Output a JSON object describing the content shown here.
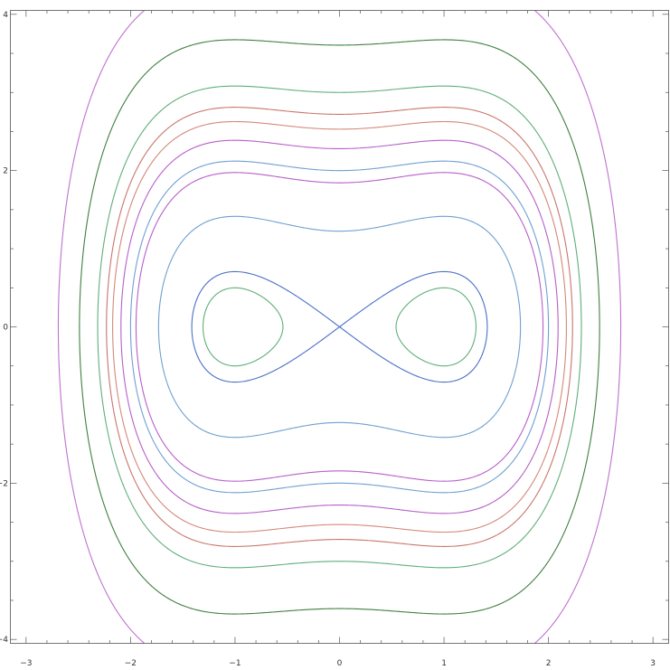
{
  "chart_data": {
    "type": "line",
    "subtype": "contour",
    "title": "",
    "xlabel": "",
    "ylabel": "",
    "xlim": [
      -3.15,
      3.15
    ],
    "ylim": [
      -4.05,
      4.05
    ],
    "x_ticks": [
      -3,
      -2,
      -1,
      0,
      1,
      2,
      3
    ],
    "y_ticks": [
      -4,
      -2,
      0,
      2,
      4
    ],
    "x_tick_labels": [
      "−3",
      "−2",
      "−1",
      "0",
      "1",
      "2",
      "3"
    ],
    "y_tick_labels": [
      "−4",
      "−2",
      "0",
      "2",
      "4"
    ],
    "minor_ticks": true,
    "grid": false,
    "contour_function": "H(x, y) = y^2/2 - x^2/2 + x^4/4",
    "contour_levels": [
      {
        "level": -0.125,
        "color": "#5fae7a"
      },
      {
        "level": 0.0,
        "color": "#4a6fc7"
      },
      {
        "level": 0.75,
        "color": "#6f9fd0"
      },
      {
        "level": 1.7,
        "color": "#b75fc9"
      },
      {
        "level": 3.7,
        "color": "#c9756a"
      },
      {
        "level": 2.0,
        "color": "#6f9fd0"
      },
      {
        "level": 2.6,
        "color": "#b75fc9"
      },
      {
        "level": 3.2,
        "color": "#d4877a"
      },
      {
        "level": 4.5,
        "color": "#5fae7a"
      },
      {
        "level": 6.5,
        "color": "#3f7f3f"
      },
      {
        "level": 9.5,
        "color": "#c070d0"
      }
    ]
  }
}
